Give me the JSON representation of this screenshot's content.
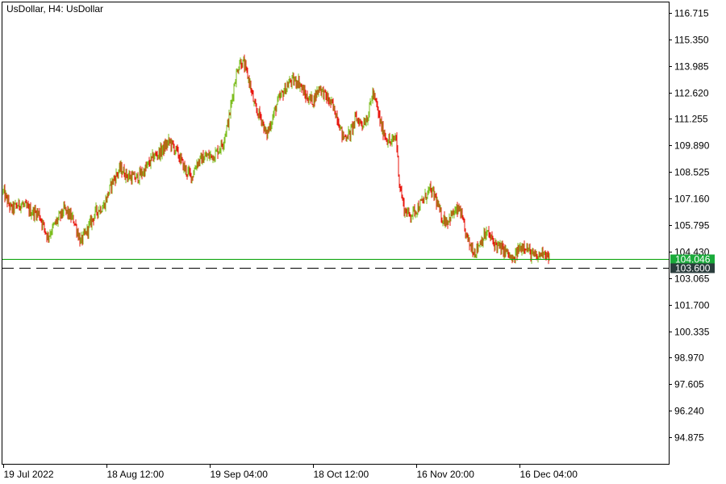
{
  "header": {
    "symbol_title": "UsDollar, H4:  UsDollar"
  },
  "colors": {
    "background": "#ffffff",
    "axis": "#000000",
    "bull_candle": "#7cbd1e",
    "bear_candle": "#e8170f",
    "bid_line": "#00a000",
    "bid_tag": "#1aaa3a",
    "level_tag": "#2b3d3d",
    "level_line": "#000000"
  },
  "chart_data": {
    "type": "candlestick",
    "symbol": "UsDollar",
    "timeframe": "H4",
    "price_axis": {
      "min": 93.51,
      "max": 117.25,
      "ticks": [
        "116.715",
        "115.350",
        "113.985",
        "112.620",
        "111.255",
        "109.890",
        "108.525",
        "107.160",
        "105.795",
        "104.430",
        "103.065",
        "101.700",
        "100.335",
        "98.970",
        "97.605",
        "96.240",
        "94.875"
      ]
    },
    "time_axis": {
      "labels": [
        {
          "text": "19 Jul 2022",
          "index": 0
        },
        {
          "text": "18 Aug 12:00",
          "index": 128
        },
        {
          "text": "19 Sep 04:00",
          "index": 256
        },
        {
          "text": "18 Oct 12:00",
          "index": 384
        },
        {
          "text": "16 Nov 20:00",
          "index": 512
        },
        {
          "text": "16 Dec 04:00",
          "index": 640
        }
      ],
      "total_bars": 677
    },
    "close_path": [
      {
        "i": 0,
        "p": 107.5
      },
      {
        "i": 10,
        "p": 106.6
      },
      {
        "i": 22,
        "p": 106.9
      },
      {
        "i": 34,
        "p": 106.5
      },
      {
        "i": 44,
        "p": 106.4
      },
      {
        "i": 55,
        "p": 105.2
      },
      {
        "i": 65,
        "p": 105.9
      },
      {
        "i": 76,
        "p": 106.6
      },
      {
        "i": 88,
        "p": 106.0
      },
      {
        "i": 96,
        "p": 104.9
      },
      {
        "i": 105,
        "p": 105.6
      },
      {
        "i": 115,
        "p": 106.5
      },
      {
        "i": 125,
        "p": 106.8
      },
      {
        "i": 135,
        "p": 108.0
      },
      {
        "i": 145,
        "p": 108.7
      },
      {
        "i": 155,
        "p": 108.3
      },
      {
        "i": 165,
        "p": 108.2
      },
      {
        "i": 175,
        "p": 108.6
      },
      {
        "i": 186,
        "p": 109.3
      },
      {
        "i": 196,
        "p": 109.6
      },
      {
        "i": 206,
        "p": 110.1
      },
      {
        "i": 216,
        "p": 109.5
      },
      {
        "i": 226,
        "p": 108.6
      },
      {
        "i": 234,
        "p": 108.3
      },
      {
        "i": 240,
        "p": 109.0
      },
      {
        "i": 250,
        "p": 109.3
      },
      {
        "i": 262,
        "p": 109.4
      },
      {
        "i": 272,
        "p": 110.0
      },
      {
        "i": 280,
        "p": 111.3
      },
      {
        "i": 287,
        "p": 113.2
      },
      {
        "i": 293,
        "p": 114.2
      },
      {
        "i": 298,
        "p": 114.1
      },
      {
        "i": 305,
        "p": 113.2
      },
      {
        "i": 312,
        "p": 111.8
      },
      {
        "i": 320,
        "p": 111.3
      },
      {
        "i": 326,
        "p": 110.4
      },
      {
        "i": 333,
        "p": 111.2
      },
      {
        "i": 340,
        "p": 112.1
      },
      {
        "i": 348,
        "p": 112.7
      },
      {
        "i": 356,
        "p": 113.2
      },
      {
        "i": 366,
        "p": 113.2
      },
      {
        "i": 375,
        "p": 112.4
      },
      {
        "i": 384,
        "p": 112.2
      },
      {
        "i": 392,
        "p": 112.9
      },
      {
        "i": 400,
        "p": 112.4
      },
      {
        "i": 407,
        "p": 112.0
      },
      {
        "i": 414,
        "p": 111.4
      },
      {
        "i": 421,
        "p": 110.3
      },
      {
        "i": 430,
        "p": 110.5
      },
      {
        "i": 437,
        "p": 111.3
      },
      {
        "i": 445,
        "p": 111.0
      },
      {
        "i": 452,
        "p": 111.4
      },
      {
        "i": 458,
        "p": 112.6
      },
      {
        "i": 463,
        "p": 111.9
      },
      {
        "i": 469,
        "p": 110.8
      },
      {
        "i": 476,
        "p": 110.2
      },
      {
        "i": 481,
        "p": 110.0
      },
      {
        "i": 487,
        "p": 110.4
      },
      {
        "i": 491,
        "p": 108.0
      },
      {
        "i": 497,
        "p": 106.6
      },
      {
        "i": 504,
        "p": 106.3
      },
      {
        "i": 512,
        "p": 106.6
      },
      {
        "i": 520,
        "p": 107.0
      },
      {
        "i": 528,
        "p": 107.6
      },
      {
        "i": 535,
        "p": 107.3
      },
      {
        "i": 543,
        "p": 106.2
      },
      {
        "i": 550,
        "p": 106.0
      },
      {
        "i": 558,
        "p": 106.4
      },
      {
        "i": 566,
        "p": 106.6
      },
      {
        "i": 572,
        "p": 105.5
      },
      {
        "i": 578,
        "p": 104.8
      },
      {
        "i": 585,
        "p": 104.4
      },
      {
        "i": 592,
        "p": 105.0
      },
      {
        "i": 600,
        "p": 105.4
      },
      {
        "i": 608,
        "p": 104.9
      },
      {
        "i": 616,
        "p": 104.6
      },
      {
        "i": 624,
        "p": 104.4
      },
      {
        "i": 632,
        "p": 103.9
      },
      {
        "i": 638,
        "p": 104.5
      },
      {
        "i": 646,
        "p": 104.8
      },
      {
        "i": 654,
        "p": 104.3
      },
      {
        "i": 662,
        "p": 104.1
      },
      {
        "i": 670,
        "p": 104.5
      },
      {
        "i": 677,
        "p": 104.05
      }
    ],
    "current_bid": {
      "value": 104.046,
      "label": "104.046"
    },
    "level_line": {
      "value": 103.6,
      "label": "103.600",
      "style": "dashed"
    }
  }
}
